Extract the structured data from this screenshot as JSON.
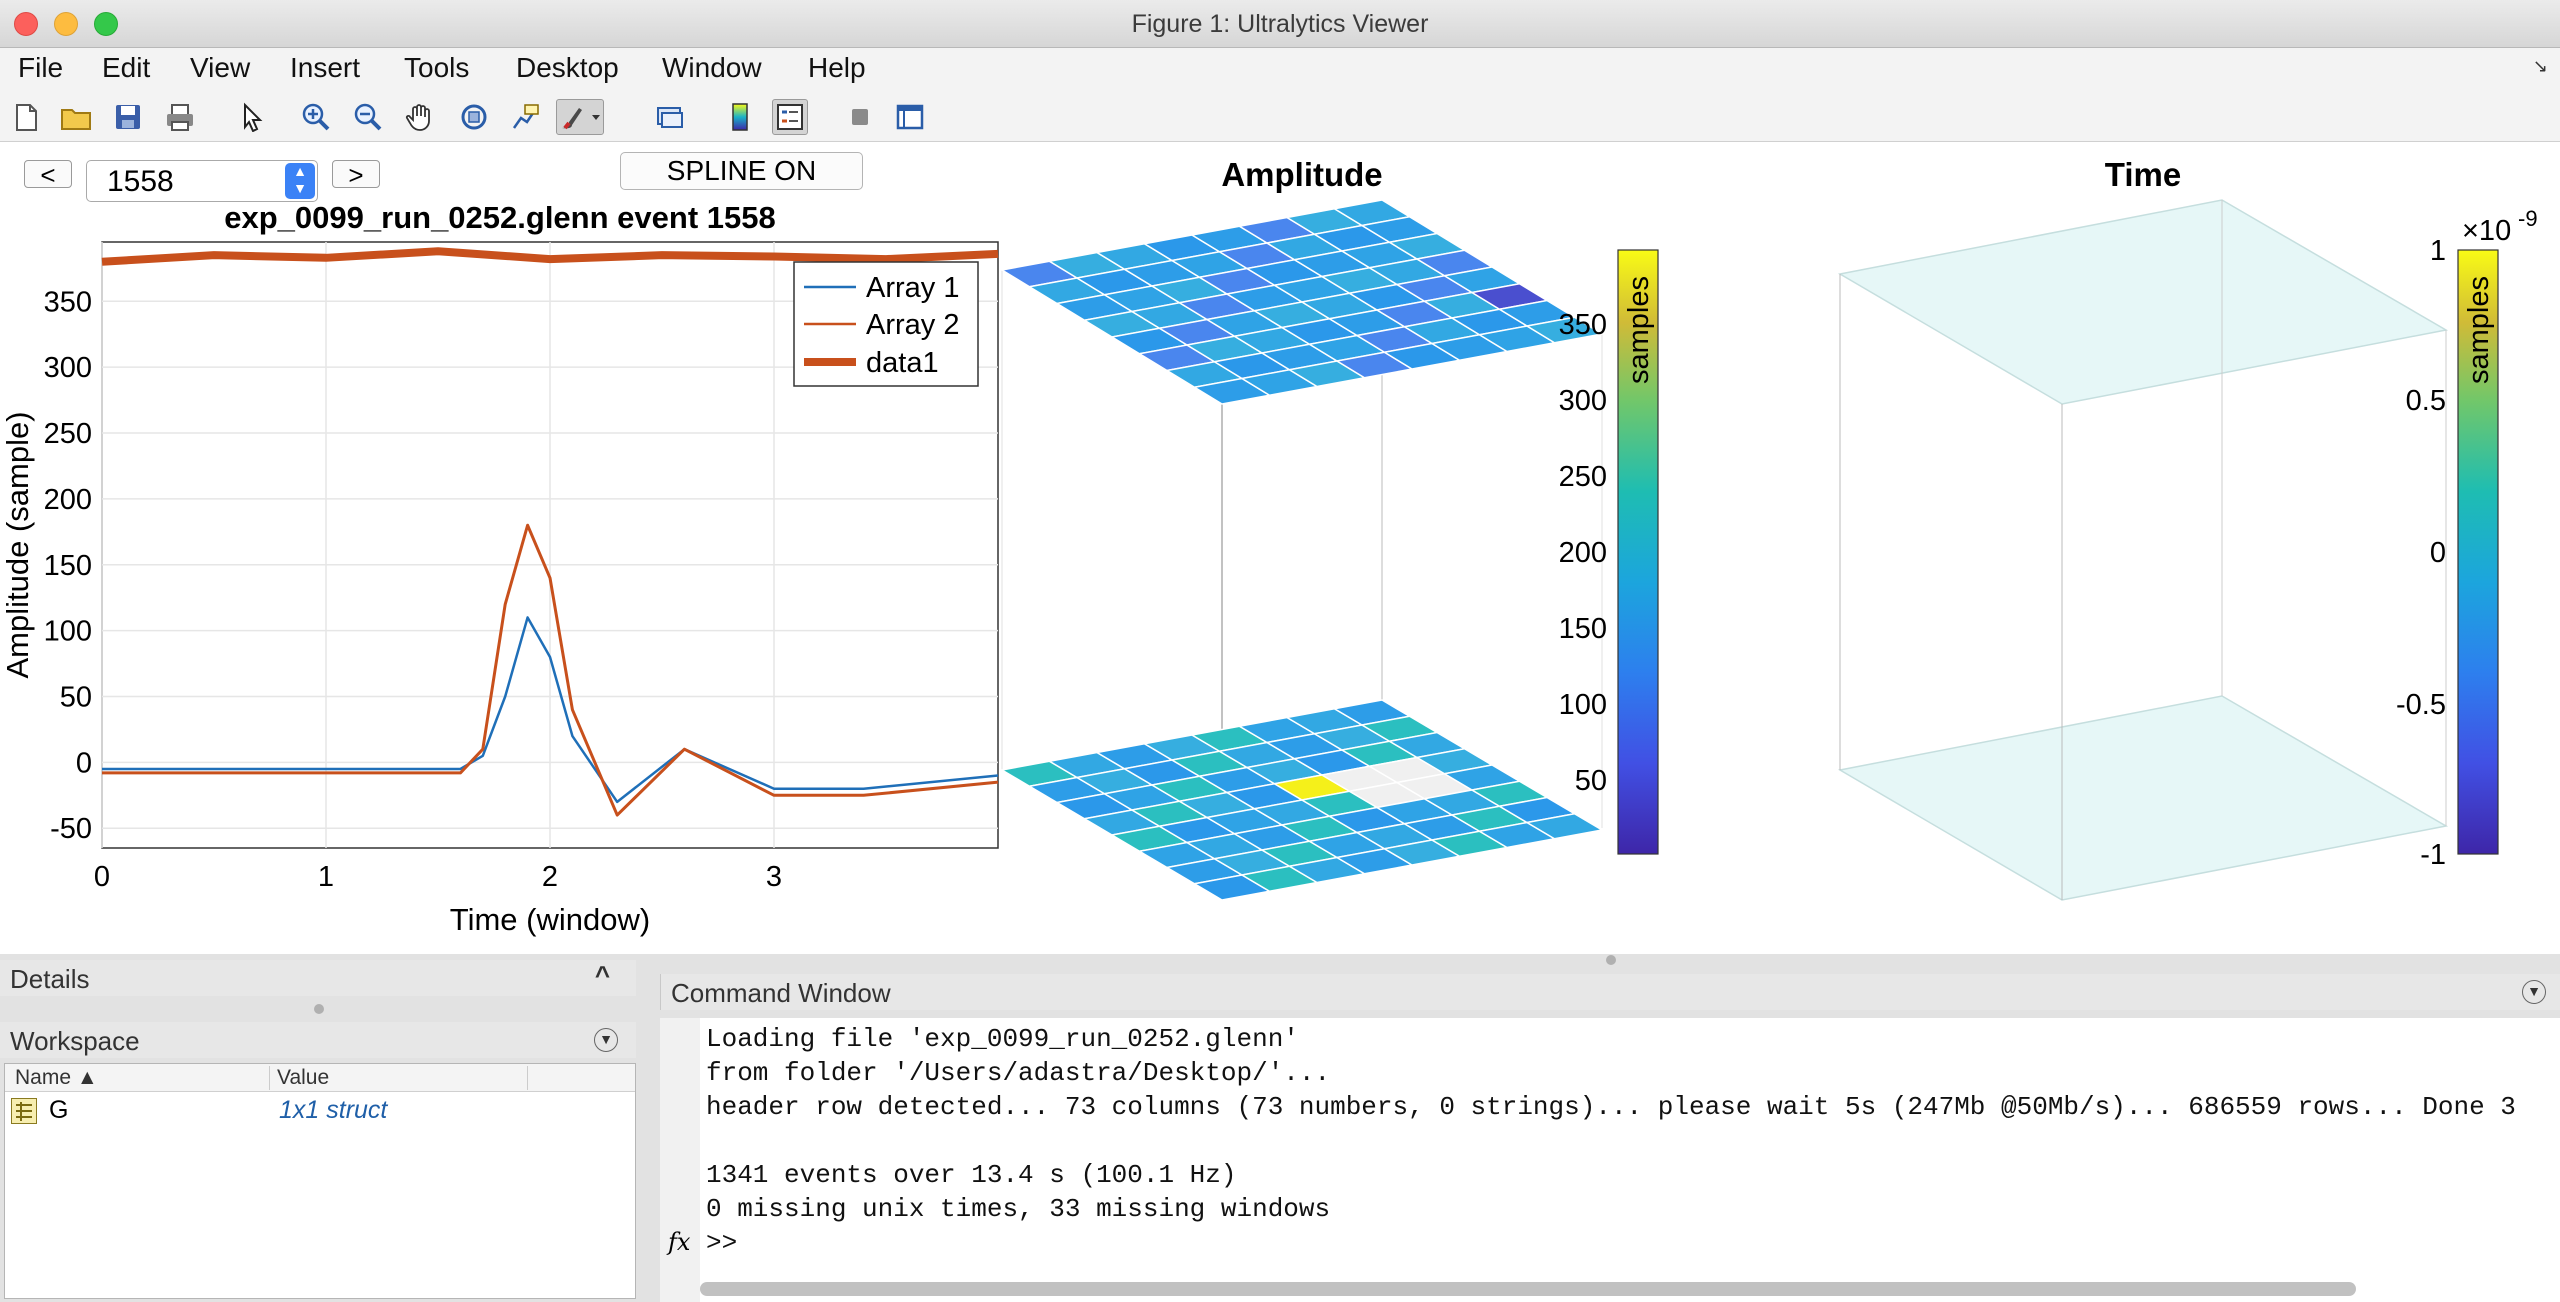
{
  "window": {
    "title": "Figure 1: Ultralytics Viewer"
  },
  "menu": [
    "File",
    "Edit",
    "View",
    "Insert",
    "Tools",
    "Desktop",
    "Window",
    "Help"
  ],
  "toolbar": {
    "icons": [
      "new-file-icon",
      "open-folder-icon",
      "save-icon",
      "print-icon",
      "pointer-icon",
      "zoom-in-icon",
      "zoom-out-icon",
      "pan-hand-icon",
      "rotate-3d-icon",
      "data-cursor-icon",
      "brush-icon",
      "link-plot-icon",
      "colorbar-icon",
      "legend-icon",
      "hide-plot-tools-icon",
      "show-plot-tools-icon"
    ]
  },
  "controls": {
    "prev_label": "<",
    "next_label": ">",
    "event_value": "1558",
    "spline_label": "SPLINE ON"
  },
  "plot": {
    "title": "exp_0099_run_0252.glenn event 1558",
    "xlabel": "Time (window)",
    "ylabel": "Amplitude (sample)",
    "xticks": [
      "0",
      "1",
      "2",
      "3"
    ],
    "yticks": [
      "-50",
      "0",
      "50",
      "100",
      "150",
      "200",
      "250",
      "300",
      "350"
    ],
    "legend": [
      "Array 1",
      "Array 2",
      "data1"
    ]
  },
  "amplitude_panel": {
    "title": "Amplitude",
    "colorbar_label": "samples",
    "ticks": [
      "50",
      "100",
      "150",
      "200",
      "250",
      "300",
      "350"
    ]
  },
  "time_panel": {
    "title": "Time",
    "colorbar_label": "samples",
    "exponent_base": "×10",
    "exponent_power": "-9",
    "ticks": [
      "-1",
      "-0.5",
      "0",
      "0.5",
      "1"
    ]
  },
  "details": {
    "title": "Details",
    "toggle": "^"
  },
  "workspace": {
    "title": "Workspace",
    "columns": [
      "Name ▲",
      "Value"
    ],
    "rows": [
      {
        "name": "G",
        "value": "1x1 struct"
      }
    ]
  },
  "command_window": {
    "title": "Command Window",
    "lines": [
      "Loading file 'exp_0099_run_0252.glenn'",
      "from folder '/Users/adastra/Desktop/'...",
      "header row detected... 73 columns (73 numbers, 0 strings)... please wait 5s (247Mb @50Mb/s)... 686559 rows... Done 3",
      "",
      "1341 events over 13.4 s (100.1 Hz)",
      "0 missing unix times, 33 missing windows"
    ],
    "prompt": ">>",
    "fx_label": "fx"
  },
  "colors": {
    "array1": "#1f6fb8",
    "array2": "#c8501c",
    "data1": "#c8501c",
    "accent": "#3b82f6"
  },
  "chart_data": {
    "type": "line",
    "title": "exp_0099_run_0252.glenn event 1558",
    "xlabel": "Time (window)",
    "ylabel": "Amplitude (sample)",
    "xlim": [
      0,
      4
    ],
    "ylim": [
      -65,
      395
    ],
    "grid": true,
    "legend_position": "top-right",
    "series": [
      {
        "name": "Array 1",
        "x": [
          0,
          1.6,
          1.7,
          1.8,
          1.9,
          2.0,
          2.1,
          2.3,
          2.6,
          3.0,
          3.4,
          4.0
        ],
        "y": [
          -5,
          -5,
          5,
          50,
          110,
          80,
          20,
          -30,
          10,
          -20,
          -20,
          -10
        ]
      },
      {
        "name": "Array 2",
        "x": [
          0,
          1.6,
          1.7,
          1.8,
          1.9,
          2.0,
          2.1,
          2.3,
          2.6,
          3.0,
          3.4,
          4.0
        ],
        "y": [
          -8,
          -8,
          10,
          120,
          180,
          140,
          40,
          -40,
          10,
          -25,
          -25,
          -15
        ]
      },
      {
        "name": "data1",
        "x": [
          0,
          0.5,
          1.0,
          1.5,
          2.0,
          2.5,
          3.0,
          3.5,
          4.0
        ],
        "y": [
          380,
          385,
          383,
          388,
          382,
          385,
          384,
          382,
          386
        ]
      }
    ]
  }
}
